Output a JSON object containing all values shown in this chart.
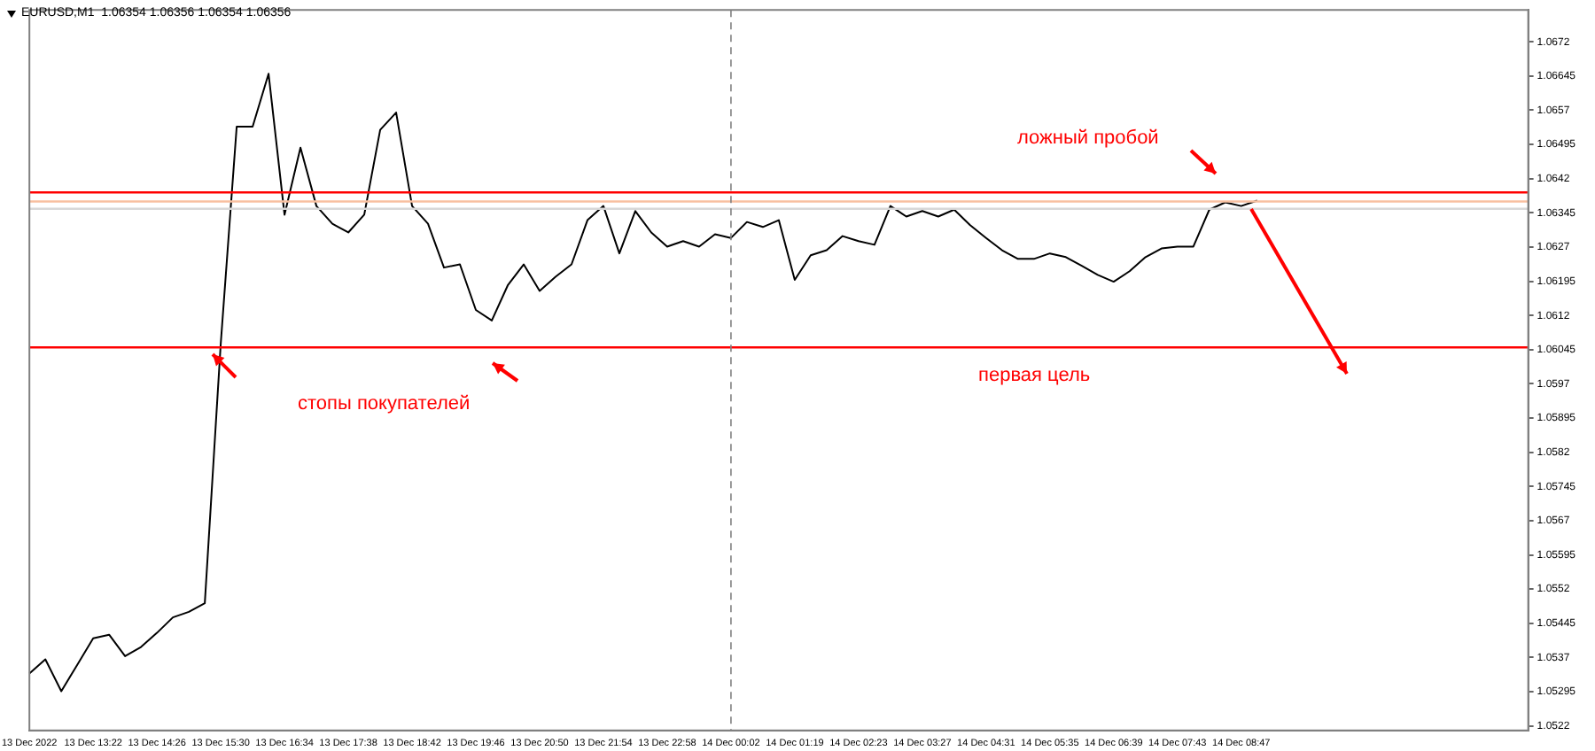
{
  "chart_data": {
    "type": "line",
    "title": "EURUSD,M1  1.06354 1.06356 1.06354 1.06356",
    "categories": [
      "13 Dec 2022",
      null,
      null,
      null,
      "13 Dec 13:22",
      null,
      null,
      null,
      "13 Dec 14:26",
      null,
      null,
      null,
      "13 Dec 15:30",
      null,
      null,
      null,
      "13 Dec 16:34",
      null,
      null,
      null,
      "13 Dec 17:38",
      null,
      null,
      null,
      "13 Dec 18:42",
      null,
      null,
      null,
      "13 Dec 19:46",
      null,
      null,
      null,
      "13 Dec 20:50",
      null,
      null,
      null,
      "13 Dec 21:54",
      null,
      null,
      null,
      "13 Dec 22:58",
      null,
      null,
      null,
      "14 Dec 00:02",
      null,
      null,
      null,
      "14 Dec 01:19",
      null,
      null,
      null,
      "14 Dec 02:23",
      null,
      null,
      null,
      "14 Dec 03:27",
      null,
      null,
      null,
      "14 Dec 04:31",
      null,
      null,
      null,
      "14 Dec 05:35",
      null,
      null,
      null,
      "14 Dec 06:39",
      null,
      null,
      null,
      "14 Dec 07:43",
      null,
      null,
      null,
      "14 Dec 08:47",
      null,
      null,
      null,
      null,
      null,
      null,
      null,
      null,
      null,
      null,
      null,
      null,
      null,
      null,
      null,
      null,
      null,
      null
    ],
    "series": [
      {
        "color": "#000000",
        "values": [
          1.05335,
          1.05366,
          1.05296,
          1.05354,
          1.05412,
          1.0542,
          1.05373,
          1.05393,
          1.05424,
          1.05458,
          1.0547,
          1.05489,
          1.06058,
          1.06534,
          1.06534,
          1.0665,
          1.06341,
          1.06488,
          1.0636,
          1.06321,
          1.06302,
          1.06341,
          1.06527,
          1.06565,
          1.0636,
          1.06321,
          1.06225,
          1.06232,
          1.06132,
          1.06109,
          1.06186,
          1.06232,
          1.06174,
          1.06205,
          1.06232,
          1.06329,
          1.0636,
          1.06256,
          1.06349,
          1.06302,
          1.06271,
          1.06283,
          1.06271,
          1.06298,
          1.0629,
          1.06325,
          1.06314,
          1.06329,
          1.06198,
          1.06252,
          1.06263,
          1.06294,
          1.06283,
          1.06275,
          1.0636,
          1.06337,
          1.06349,
          1.06337,
          1.06352,
          1.06318,
          1.0629,
          1.06263,
          1.06244,
          1.06244,
          1.06256,
          1.06248,
          1.06229,
          1.06209,
          1.06194,
          1.06217,
          1.06248,
          1.06267,
          1.06271,
          1.06271,
          1.06352,
          1.06368,
          1.0636,
          1.06372,
          null,
          null,
          null,
          null,
          null,
          null,
          null,
          null,
          null,
          null,
          null,
          null,
          null,
          null,
          null,
          null,
          null
        ]
      }
    ],
    "ylim": [
      1.0521,
      1.0679
    ],
    "yticks": [
      1.0522,
      1.05295,
      1.0537,
      1.05445,
      1.0552,
      1.05595,
      1.0567,
      1.05745,
      1.0582,
      1.05895,
      1.0597,
      1.06045,
      1.0612,
      1.06195,
      1.0627,
      1.06345,
      1.0642,
      1.06495,
      1.0657,
      1.06645,
      1.0672
    ],
    "ref_lines": [
      {
        "axis": "y",
        "value": 1.0639,
        "color": "#ff0000"
      },
      {
        "axis": "y",
        "value": 1.0637,
        "color": "#f8c0a0"
      },
      {
        "axis": "y",
        "value": 1.06354,
        "color": "#d8d8d8"
      },
      {
        "axis": "y",
        "value": 1.0605,
        "color": "#ff0000"
      },
      {
        "axis": "x",
        "value": "14 Dec 00:02",
        "color": "#808080",
        "line_style": "dashed"
      }
    ],
    "annotations": [
      "ложный пробой",
      "стопы покупателей",
      "первая цель"
    ],
    "grid": false,
    "legend": false,
    "marker": "none",
    "line_style": "solid"
  }
}
